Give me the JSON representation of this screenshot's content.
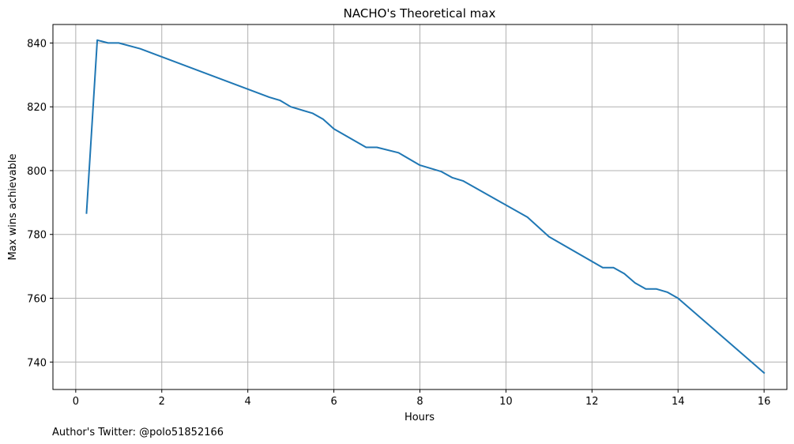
{
  "chart_data": {
    "type": "line",
    "title": "NACHO's Theoretical max",
    "xlabel": "Hours",
    "ylabel": "Max wins achievable",
    "xlim": [
      -0.53,
      16.53
    ],
    "ylim": [
      731.4,
      845.8
    ],
    "xticks": [
      0,
      2,
      4,
      6,
      8,
      10,
      12,
      14,
      16
    ],
    "yticks": [
      740,
      760,
      780,
      800,
      820,
      840
    ],
    "grid": true,
    "series": [
      {
        "color": "#1f77b4",
        "points": [
          [
            0.25,
            786.7
          ],
          [
            0.5,
            840.9
          ],
          [
            0.75,
            840.0
          ],
          [
            1.0,
            840.0
          ],
          [
            1.5,
            838.2
          ],
          [
            4.5,
            823.0
          ],
          [
            4.75,
            822.0
          ],
          [
            5.0,
            820.0
          ],
          [
            5.5,
            818.0
          ],
          [
            5.75,
            816.1
          ],
          [
            6.0,
            813.1
          ],
          [
            6.75,
            807.3
          ],
          [
            7.0,
            807.3
          ],
          [
            7.5,
            805.6
          ],
          [
            8.0,
            801.7
          ],
          [
            8.5,
            799.7
          ],
          [
            8.75,
            797.8
          ],
          [
            9.0,
            796.8
          ],
          [
            10.5,
            785.4
          ],
          [
            11.0,
            779.3
          ],
          [
            12.25,
            769.6
          ],
          [
            12.5,
            769.6
          ],
          [
            12.75,
            767.7
          ],
          [
            13.0,
            764.8
          ],
          [
            13.25,
            762.9
          ],
          [
            13.5,
            762.9
          ],
          [
            13.75,
            761.9
          ],
          [
            14.0,
            760.0
          ],
          [
            16.0,
            736.6
          ]
        ]
      }
    ]
  },
  "footer": {
    "credit": "Author's Twitter: @polo51852166"
  }
}
